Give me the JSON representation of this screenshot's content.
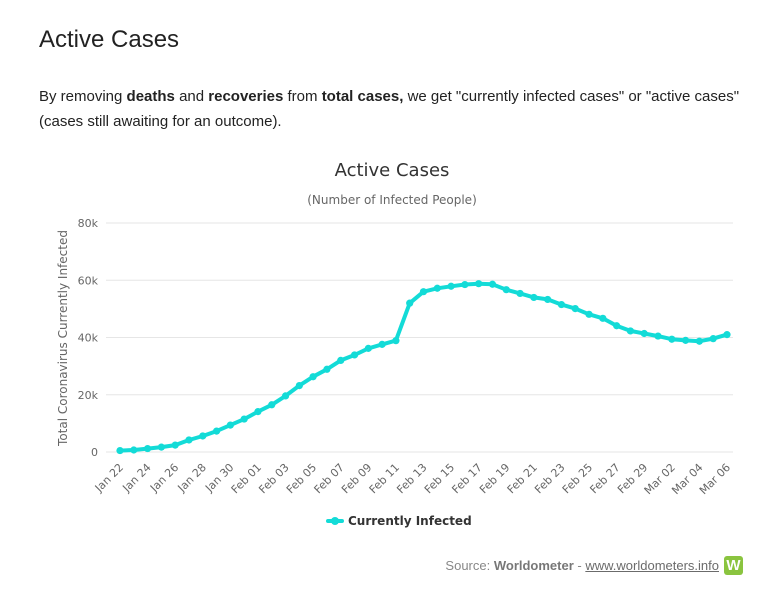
{
  "page": {
    "title": "Active Cases",
    "intro": {
      "p1": "By removing ",
      "b1": "deaths",
      "p2": " and ",
      "b2": "recoveries",
      "p3": " from ",
      "b3": "total cases,",
      "p4": " we get \"currently infected cases\" or \"active cases\" (cases still awaiting for an outcome)."
    }
  },
  "source": {
    "prefix": "Source: ",
    "name": "Worldometer",
    "sep": " - ",
    "link": "www.worldometers.info",
    "logo_letter": "W"
  },
  "colors": {
    "series": "#13dbd7",
    "grid": "#e6e6e6",
    "axis_text": "#666666",
    "title": "#333333"
  },
  "chart_data": {
    "type": "line",
    "title": "Active Cases",
    "subtitle": "(Number of Infected People)",
    "xlabel": "",
    "ylabel": "Total Coronavirus Currently Infected",
    "ylim": [
      0,
      80000
    ],
    "yticks": [
      0,
      20000,
      40000,
      60000,
      80000
    ],
    "ytick_labels": [
      "0",
      "20k",
      "40k",
      "60k",
      "80k"
    ],
    "grid": true,
    "legend_position": "bottom-center",
    "x_tick_labels": [
      "Jan 22",
      "Jan 24",
      "Jan 26",
      "Jan 28",
      "Jan 30",
      "Feb 01",
      "Feb 03",
      "Feb 05",
      "Feb 07",
      "Feb 09",
      "Feb 11",
      "Feb 13",
      "Feb 15",
      "Feb 17",
      "Feb 19",
      "Feb 21",
      "Feb 23",
      "Feb 25",
      "Feb 27",
      "Feb 29",
      "Mar 02",
      "Mar 04",
      "Mar 06"
    ],
    "series": [
      {
        "name": "Currently Infected",
        "values": [
          500,
          700,
          1200,
          1700,
          2400,
          4200,
          5600,
          7300,
          9400,
          11500,
          14100,
          16500,
          19600,
          23200,
          26300,
          28900,
          32000,
          33900,
          36200,
          37600,
          38900,
          52000,
          56000,
          57200,
          57900,
          58500,
          58800,
          58600,
          56700,
          55400,
          54000,
          53300,
          51500,
          50100,
          48100,
          46700,
          44100,
          42300,
          41400,
          40500,
          39400,
          39000,
          38700,
          39600,
          41000
        ]
      }
    ]
  }
}
